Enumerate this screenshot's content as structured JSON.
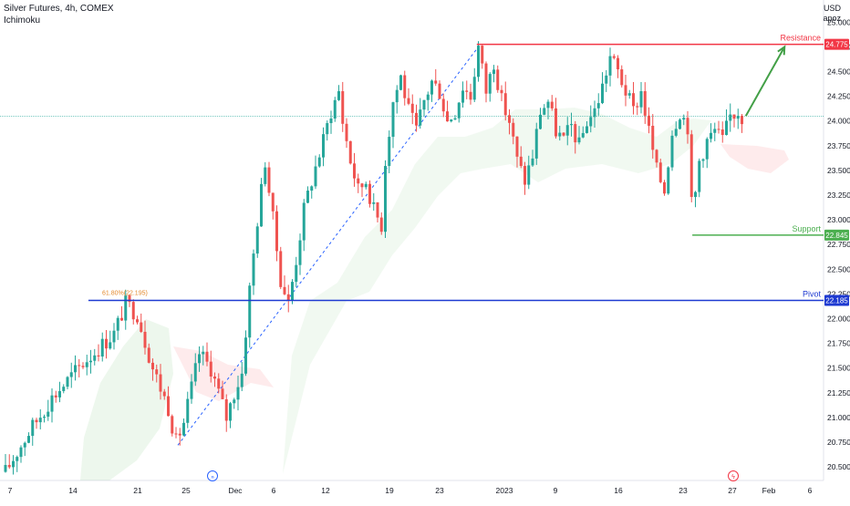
{
  "header": {
    "title": "Silver Futures, 4h, COMEX",
    "indicator": "Ichimoku",
    "currency": "USD",
    "currency_sub": "apoz"
  },
  "chart_data": {
    "type": "candlestick",
    "symbol": "Silver Futures",
    "timeframe": "4h",
    "exchange": "COMEX",
    "indicators": [
      "Ichimoku"
    ],
    "y_axis": {
      "ylim": [
        20.4,
        25.15
      ],
      "ticks": [
        "25.000",
        "24.750",
        "24.500",
        "24.250",
        "24.000",
        "23.750",
        "23.500",
        "23.250",
        "23.000",
        "22.750",
        "22.500",
        "22.250",
        "22.000",
        "21.750",
        "21.500",
        "21.250",
        "21.000",
        "20.750",
        "20.500"
      ]
    },
    "x_axis": {
      "tick_labels": [
        "7",
        "14",
        "21",
        "25",
        "Dec",
        "6",
        "12",
        "19",
        "23",
        "2023",
        "9",
        "16",
        "23",
        "27",
        "Feb",
        "6"
      ]
    },
    "levels": [
      {
        "name": "Resistance",
        "value": 24.775,
        "label": "24.775",
        "color": "#f23645"
      },
      {
        "name": "Support",
        "value": 22.845,
        "label": "22.845",
        "color": "#4caf50"
      },
      {
        "name": "Pivot",
        "value": 22.185,
        "label": "22.185",
        "color": "#1e3ad1"
      }
    ],
    "current_price": 24.05,
    "fib_label": "61.80%(22.195)",
    "price_path": [
      [
        0,
        20.45
      ],
      [
        3,
        20.85
      ],
      [
        6,
        21.2
      ],
      [
        10,
        21.55
      ],
      [
        14,
        21.85
      ],
      [
        15.5,
        22.15
      ],
      [
        17,
        22.05
      ],
      [
        19,
        21.5
      ],
      [
        21,
        21.1
      ],
      [
        22,
        20.75
      ],
      [
        23,
        20.95
      ],
      [
        24,
        21.3
      ],
      [
        25,
        21.65
      ],
      [
        26.5,
        21.5
      ],
      [
        27.5,
        21.25
      ],
      [
        28.5,
        21.0
      ],
      [
        29.5,
        21.25
      ],
      [
        30.5,
        21.45
      ],
      [
        31.5,
        22.3
      ],
      [
        32.5,
        23.0
      ],
      [
        33.5,
        23.6
      ],
      [
        34.5,
        23.0
      ],
      [
        35.5,
        22.4
      ],
      [
        36.5,
        22.15
      ],
      [
        37.5,
        22.6
      ],
      [
        38.5,
        23.1
      ],
      [
        39.5,
        23.4
      ],
      [
        41,
        23.8
      ],
      [
        42,
        24.1
      ],
      [
        43,
        24.3
      ],
      [
        43.5,
        24.0
      ],
      [
        44.5,
        23.6
      ],
      [
        45.5,
        23.3
      ],
      [
        46.5,
        23.4
      ],
      [
        47.5,
        23.1
      ],
      [
        48.5,
        22.95
      ],
      [
        49,
        23.6
      ],
      [
        50,
        24.2
      ],
      [
        51,
        24.45
      ],
      [
        52,
        24.1
      ],
      [
        53,
        23.9
      ],
      [
        54,
        24.2
      ],
      [
        55,
        24.4
      ],
      [
        56,
        24.3
      ],
      [
        57,
        24.0
      ],
      [
        58,
        24.1
      ],
      [
        59,
        24.35
      ],
      [
        60,
        24.25
      ],
      [
        61,
        24.75
      ],
      [
        62,
        24.3
      ],
      [
        63,
        24.6
      ],
      [
        64,
        24.2
      ],
      [
        65,
        24.0
      ],
      [
        66,
        23.6
      ],
      [
        67,
        23.4
      ],
      [
        68,
        23.65
      ],
      [
        69,
        24.1
      ],
      [
        70,
        24.2
      ],
      [
        71,
        23.9
      ],
      [
        72,
        23.8
      ],
      [
        73,
        23.95
      ],
      [
        74,
        23.75
      ],
      [
        75,
        24.0
      ],
      [
        76,
        24.1
      ],
      [
        77,
        24.35
      ],
      [
        78,
        24.65
      ],
      [
        79,
        24.5
      ],
      [
        80,
        24.3
      ],
      [
        81,
        24.1
      ],
      [
        82,
        24.3
      ],
      [
        83,
        23.9
      ],
      [
        84,
        23.5
      ],
      [
        85,
        23.3
      ],
      [
        86,
        23.9
      ],
      [
        87,
        24.1
      ],
      [
        88,
        23.95
      ],
      [
        88.6,
        23.0
      ],
      [
        89.5,
        23.6
      ],
      [
        90.5,
        23.8
      ],
      [
        91.5,
        23.9
      ],
      [
        92.5,
        23.8
      ],
      [
        93.5,
        24.05
      ],
      [
        94.5,
        24.1
      ],
      [
        95,
        24.05
      ]
    ],
    "projection": {
      "from": [
        95.5,
        24.05
      ],
      "to": [
        100.5,
        24.75
      ]
    }
  }
}
